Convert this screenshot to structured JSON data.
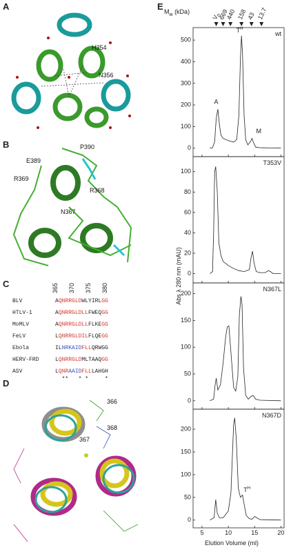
{
  "panels": {
    "A": {
      "letter": "A",
      "labels": [
        "H354",
        "N356"
      ]
    },
    "B": {
      "letter": "B",
      "labels": [
        "P390",
        "E389",
        "R369",
        "R368",
        "N367"
      ]
    },
    "C": {
      "letter": "C",
      "numbering": [
        365,
        370,
        375,
        380
      ],
      "rows": [
        {
          "name": "BLV",
          "seq": [
            {
              "t": "A",
              "c": "#222"
            },
            {
              "t": "QNRRGLD",
              "c": "#d4372c"
            },
            {
              "t": "WLYIRL",
              "c": "#222"
            },
            {
              "t": "GG",
              "c": "#d4372c"
            }
          ]
        },
        {
          "name": "HTLV-1",
          "seq": [
            {
              "t": "A",
              "c": "#222"
            },
            {
              "t": "QNRRGLDLL",
              "c": "#d4372c"
            },
            {
              "t": "FWEQ",
              "c": "#222"
            },
            {
              "t": "GG",
              "c": "#d4372c"
            }
          ]
        },
        {
          "name": "MoMLV",
          "seq": [
            {
              "t": "A",
              "c": "#222"
            },
            {
              "t": "QNRRGLDLL",
              "c": "#d4372c"
            },
            {
              "t": "FLKE",
              "c": "#222"
            },
            {
              "t": "GG",
              "c": "#d4372c"
            }
          ]
        },
        {
          "name": "FeLV",
          "seq": [
            {
              "t": "L",
              "c": "#222"
            },
            {
              "t": "QNRRGLDIL",
              "c": "#d4372c"
            },
            {
              "t": "FLQE",
              "c": "#222"
            },
            {
              "t": "GG",
              "c": "#d4372c"
            }
          ]
        },
        {
          "name": "Ebola",
          "seq": [
            {
              "t": "IL",
              "c": "#222"
            },
            {
              "t": "NRKAID",
              "c": "#3a4fc0"
            },
            {
              "t": "FLL",
              "c": "#d4372c"
            },
            {
              "t": "QRWGG",
              "c": "#222"
            }
          ]
        },
        {
          "name": "HERV-FRD",
          "seq": [
            {
              "t": "L",
              "c": "#222"
            },
            {
              "t": "QNRRGLD",
              "c": "#d4372c"
            },
            {
              "t": "MLTAAQ",
              "c": "#222"
            },
            {
              "t": "GG",
              "c": "#d4372c"
            }
          ]
        },
        {
          "name": "ASV",
          "seq": [
            {
              "t": "L",
              "c": "#222"
            },
            {
              "t": "QNR",
              "c": "#d4372c"
            },
            {
              "t": "AAID",
              "c": "#3a4fc0"
            },
            {
              "t": "FLL",
              "c": "#d4372c"
            },
            {
              "t": "LAHGH",
              "c": "#222"
            }
          ]
        }
      ],
      "conservation": "  **   * *     *"
    },
    "D": {
      "letter": "D",
      "labels": [
        "366",
        "368",
        "367"
      ]
    },
    "E": {
      "letter": "E"
    }
  },
  "chart_data": [
    {
      "type": "line",
      "title": "wt",
      "xlim": [
        3.3,
        20.6
      ],
      "xticks": [
        5,
        10,
        15,
        20
      ],
      "ylim": [
        -20,
        545
      ],
      "yticks": [
        0,
        100,
        200,
        300,
        400,
        500
      ],
      "x": [
        6.5,
        7,
        7.4,
        7.7,
        8,
        8.3,
        8.6,
        9,
        10,
        11,
        11.6,
        12,
        12.3,
        12.5,
        12.7,
        13,
        13.3,
        13.7,
        14.2,
        14.5,
        14.8,
        15.2,
        16,
        18,
        20
      ],
      "values": [
        0,
        2,
        30,
        140,
        180,
        110,
        60,
        45,
        35,
        28,
        40,
        150,
        420,
        520,
        440,
        150,
        40,
        15,
        30,
        45,
        25,
        5,
        2,
        1,
        0
      ],
      "annotations": [
        {
          "text": "A",
          "x": 7.3,
          "y": 205
        },
        {
          "text": "T",
          "sup": "H",
          "x": 11.5,
          "y": 535
        },
        {
          "text": "M",
          "x": 15.3,
          "y": 70
        }
      ],
      "axis_title": {
        "main": "M",
        "sub": "w",
        "rest": " (kDa)"
      },
      "markers": [
        {
          "label": "V",
          "sub": "0",
          "x": 7.7
        },
        {
          "label": "669",
          "x": 9.0
        },
        {
          "label": "440",
          "x": 10.4
        },
        {
          "label": "158",
          "x": 12.5
        },
        {
          "label": "43",
          "x": 14.4
        },
        {
          "label": "13.7",
          "x": 16.3
        }
      ],
      "ylabel": "Abs λ 280 nm (mAU)"
    },
    {
      "type": "line",
      "title": "T353V",
      "xlim": [
        3.3,
        20.6
      ],
      "xticks": [
        5,
        10,
        15,
        20
      ],
      "ylim": [
        -5,
        112
      ],
      "yticks": [
        0,
        20,
        40,
        60,
        80,
        100
      ],
      "x": [
        6.5,
        7,
        7.2,
        7.4,
        7.6,
        7.9,
        8.2,
        8.6,
        9,
        10,
        11,
        12,
        13,
        14,
        14.3,
        14.6,
        14.9,
        15.3,
        16,
        17,
        17.6,
        18,
        18.5,
        20
      ],
      "values": [
        0,
        2,
        40,
        100,
        105,
        80,
        30,
        18,
        12,
        8,
        5,
        3,
        2,
        4,
        15,
        22,
        10,
        2,
        1,
        1,
        3,
        2,
        0,
        0
      ]
    },
    {
      "type": "line",
      "title": "N367L",
      "xlim": [
        3.3,
        20.6
      ],
      "xticks": [
        5,
        10,
        15,
        20
      ],
      "ylim": [
        -8,
        215
      ],
      "yticks": [
        0,
        50,
        100,
        150,
        200
      ],
      "x": [
        6.5,
        7.2,
        7.5,
        7.7,
        8,
        8.5,
        9,
        9.5,
        9.8,
        10.1,
        10.5,
        11,
        11.4,
        11.8,
        12.1,
        12.4,
        12.6,
        12.9,
        13.3,
        13.8,
        14.3,
        14.7,
        15.2,
        16,
        20
      ],
      "values": [
        0,
        3,
        30,
        42,
        20,
        30,
        70,
        120,
        138,
        140,
        90,
        25,
        18,
        45,
        160,
        195,
        180,
        60,
        10,
        3,
        8,
        10,
        3,
        1,
        0
      ]
    },
    {
      "type": "line",
      "title": "N367D",
      "xlim": [
        3.3,
        20.6
      ],
      "xticks": [
        5,
        10,
        15,
        20
      ],
      "ylim": [
        -8,
        238
      ],
      "yticks": [
        0,
        50,
        100,
        150,
        200
      ],
      "x": [
        6.5,
        7.3,
        7.6,
        7.9,
        8.3,
        9,
        10,
        10.5,
        10.8,
        11,
        11.2,
        11.5,
        11.9,
        12.3,
        12.7,
        13,
        13.4,
        14,
        14.5,
        15,
        16,
        20
      ],
      "values": [
        0,
        5,
        45,
        15,
        5,
        5,
        20,
        60,
        150,
        210,
        225,
        180,
        70,
        50,
        55,
        35,
        10,
        3,
        2,
        8,
        1,
        0
      ],
      "annotations": [
        {
          "text": "T",
          "sup": "H",
          "x": 12.9,
          "y": 62
        }
      ],
      "xlabel": "Elution Volume (ml)"
    }
  ]
}
